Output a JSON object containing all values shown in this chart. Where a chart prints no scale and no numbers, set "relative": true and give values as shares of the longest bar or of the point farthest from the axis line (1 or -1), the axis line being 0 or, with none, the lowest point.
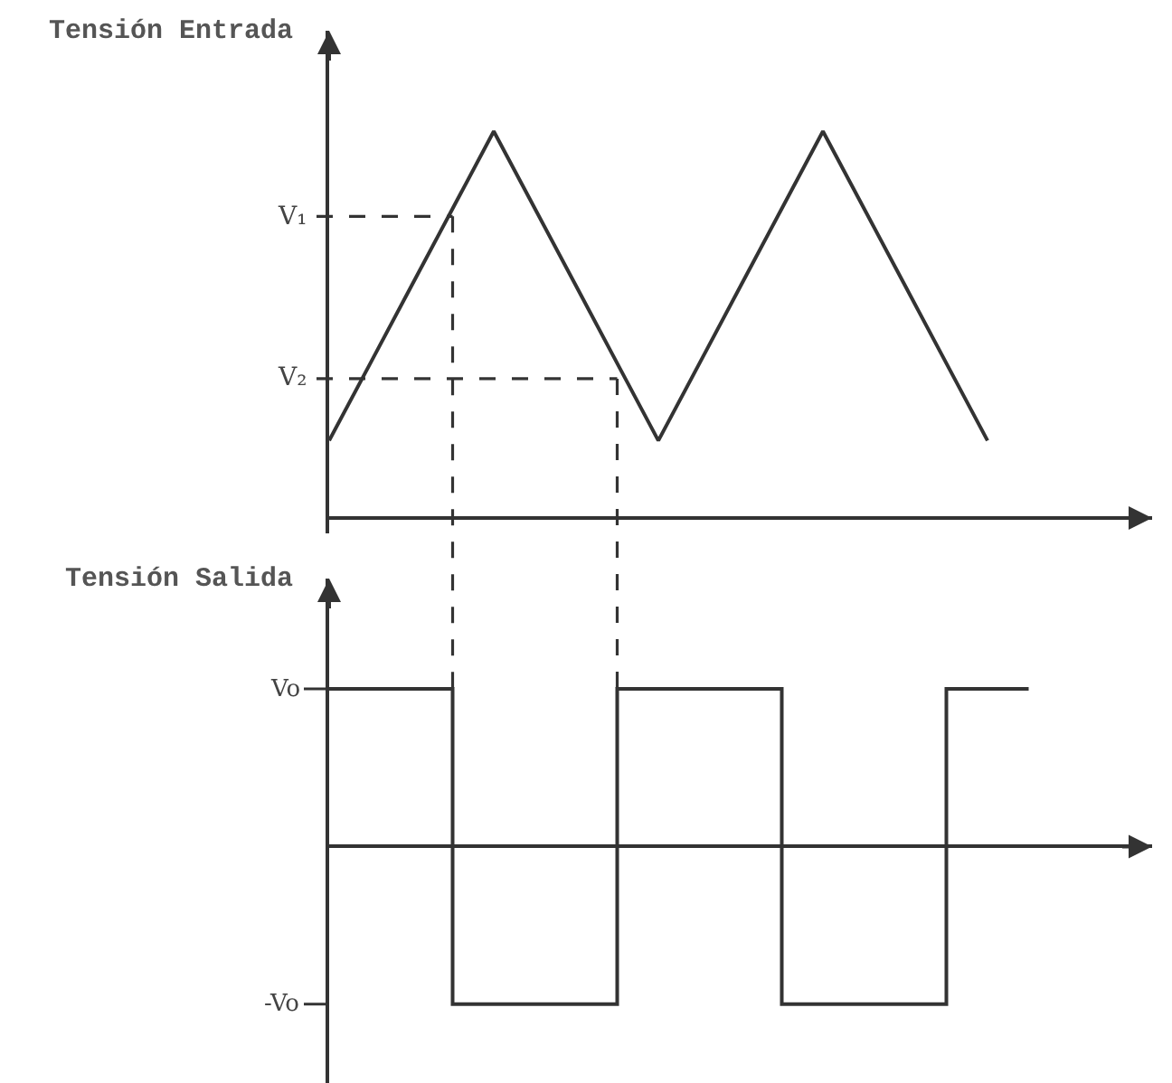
{
  "chart_data": [
    {
      "type": "line",
      "ylabel": "Tensión Entrada",
      "categories": [
        null,
        null,
        null,
        null,
        null,
        null,
        null,
        null,
        null,
        null,
        null,
        null,
        null,
        null,
        null,
        null,
        null,
        null
      ],
      "relative": true,
      "series": [
        {
          "color": "#333333",
          "values": [
            0.2,
            0.4,
            0.6,
            0.8,
            1,
            0.8,
            0.6,
            0.4,
            0.2,
            0.4,
            0.6,
            0.8,
            1,
            0.8,
            0.6,
            0.4,
            0.2,
            null
          ]
        }
      ],
      "ref_lines": [
        {
          "axis": "y",
          "value": 0.78,
          "label": "V₁",
          "line_style": "dashed"
        },
        {
          "axis": "y",
          "value": 0.36,
          "label": "V₂",
          "line_style": "dashed"
        }
      ],
      "line_style": "solid",
      "tick_labels": false
    },
    {
      "type": "step",
      "ylabel": "Tensión Salida",
      "categories": [
        null,
        null,
        null,
        null,
        null,
        null,
        null,
        null,
        null,
        null,
        null,
        null,
        null,
        null,
        null,
        null,
        null,
        null
      ],
      "relative": true,
      "series": [
        {
          "color": "#333333",
          "values": [
            1,
            1,
            1,
            -1,
            -1,
            -1,
            -1,
            1,
            1,
            1,
            1,
            -1,
            -1,
            -1,
            -1,
            1,
            1,
            1
          ]
        }
      ],
      "annotations": [
        "Vo",
        "-Vo"
      ],
      "line_style": "solid",
      "tick_labels": false
    }
  ]
}
